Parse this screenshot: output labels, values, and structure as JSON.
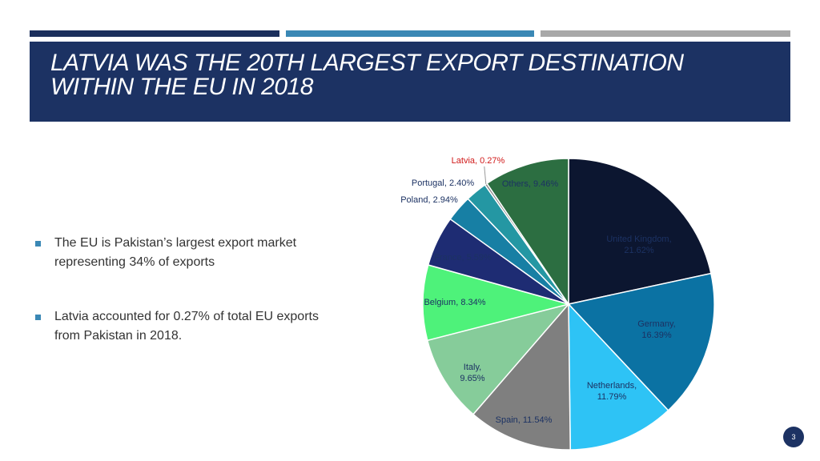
{
  "slide": {
    "title": "Latvia was the 20th largest export destination within the EU in 2018",
    "bullets": [
      "The EU is Pakistan’s largest export market representing 34% of exports",
      "Latvia accounted for 0.27% of total EU exports from Pakistan in 2018."
    ],
    "page_number": "3"
  },
  "colors": {
    "header_bg": "#1c3263",
    "accent": "#3a88b5",
    "highlight_label": "#d11a1a"
  },
  "chart_data": {
    "type": "pie",
    "start_angle_deg": 0,
    "direction": "clockwise",
    "slices": [
      {
        "label": "United Kingdom, 21.62%",
        "value": 21.62,
        "color": "#0c1630",
        "label_color": "#1c3263"
      },
      {
        "label": "Germany, 16.39%",
        "value": 16.39,
        "color": "#0b72a3",
        "label_color": "#1c3263"
      },
      {
        "label": "Netherlands, 11.79%",
        "value": 11.79,
        "color": "#2ec3f5",
        "label_color": "#1c3263"
      },
      {
        "label": "Spain, 11.54%",
        "value": 11.54,
        "color": "#7f7f7f",
        "label_color": "#1c3263"
      },
      {
        "label": "Italy, 9.65%",
        "value": 9.65,
        "color": "#86cc9a",
        "label_color": "#1c3263"
      },
      {
        "label": "Belgium, 8.34%",
        "value": 8.34,
        "color": "#4ef27a",
        "label_color": "#1c3263"
      },
      {
        "label": "France, 5.59%",
        "value": 5.59,
        "color": "#1e2c73",
        "label_color": "#1c3263"
      },
      {
        "label": "Poland, 2.94%",
        "value": 2.94,
        "color": "#177fa4",
        "label_color": "#1c3263"
      },
      {
        "label": "Portugal, 2.40%",
        "value": 2.4,
        "color": "#2497a3",
        "label_color": "#1c3263"
      },
      {
        "label": "Latvia, 0.27%",
        "value": 0.27,
        "color": "#8a8a8a",
        "label_color": "#d11a1a"
      },
      {
        "label": "Others, 9.46%",
        "value": 9.46,
        "color": "#2c6e41",
        "label_color": "#1c3263"
      }
    ]
  }
}
